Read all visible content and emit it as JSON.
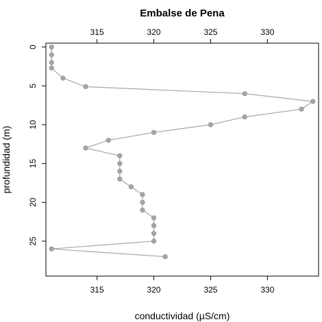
{
  "chart_data": {
    "type": "line",
    "title": "Embalse de Pena",
    "xlabel": "conductividad (µS/cm)",
    "ylabel": "profundidad (m)",
    "xlim": [
      310.5,
      334.5
    ],
    "ylim": [
      -0.5,
      29.5
    ],
    "y_reversed": true,
    "x_ticks": [
      315,
      320,
      325,
      330
    ],
    "y_ticks": [
      0,
      5,
      10,
      15,
      20,
      25
    ],
    "x_axes": [
      "top",
      "bottom"
    ],
    "grid": false,
    "series_color": "#a6a6a6",
    "series": [
      {
        "x": [
          311,
          311,
          311,
          311,
          312,
          314,
          328,
          334,
          333,
          328,
          325,
          320,
          316,
          314,
          317,
          317,
          317,
          317,
          318,
          319,
          319,
          319,
          320,
          320,
          320,
          320,
          311,
          321
        ],
        "y": [
          0,
          1,
          2,
          2.7,
          4,
          5.1,
          6,
          7,
          8,
          9,
          10,
          11,
          12,
          13,
          14,
          15,
          16,
          17,
          18,
          19,
          20,
          21,
          22,
          23,
          24,
          25,
          26,
          27
        ]
      }
    ]
  }
}
